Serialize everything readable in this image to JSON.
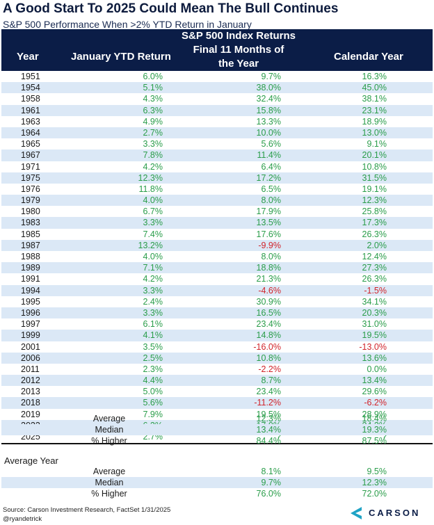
{
  "title": "A Good Start To 2025 Could Mean The Bull Continues",
  "subtitle": "S&P 500 Performance When >2% YTD Return in January",
  "header": {
    "year": "Year",
    "jan": "January YTD Return",
    "group_line1": "S&P 500 Index Returns",
    "group_line2": "Final 11 Months of",
    "group_line3": "the Year",
    "cal": "Calendar Year"
  },
  "rows": [
    {
      "year": "1951",
      "jan": "6.0%",
      "f11": "9.7%",
      "cal": "16.3%"
    },
    {
      "year": "1954",
      "jan": "5.1%",
      "f11": "38.0%",
      "cal": "45.0%"
    },
    {
      "year": "1958",
      "jan": "4.3%",
      "f11": "32.4%",
      "cal": "38.1%"
    },
    {
      "year": "1961",
      "jan": "6.3%",
      "f11": "15.8%",
      "cal": "23.1%"
    },
    {
      "year": "1963",
      "jan": "4.9%",
      "f11": "13.3%",
      "cal": "18.9%"
    },
    {
      "year": "1964",
      "jan": "2.7%",
      "f11": "10.0%",
      "cal": "13.0%"
    },
    {
      "year": "1965",
      "jan": "3.3%",
      "f11": "5.6%",
      "cal": "9.1%"
    },
    {
      "year": "1967",
      "jan": "7.8%",
      "f11": "11.4%",
      "cal": "20.1%"
    },
    {
      "year": "1971",
      "jan": "4.2%",
      "f11": "6.4%",
      "cal": "10.8%"
    },
    {
      "year": "1975",
      "jan": "12.3%",
      "f11": "17.2%",
      "cal": "31.5%"
    },
    {
      "year": "1976",
      "jan": "11.8%",
      "f11": "6.5%",
      "cal": "19.1%"
    },
    {
      "year": "1979",
      "jan": "4.0%",
      "f11": "8.0%",
      "cal": "12.3%"
    },
    {
      "year": "1980",
      "jan": "6.7%",
      "f11": "17.9%",
      "cal": "25.8%"
    },
    {
      "year": "1983",
      "jan": "3.3%",
      "f11": "13.5%",
      "cal": "17.3%"
    },
    {
      "year": "1985",
      "jan": "7.4%",
      "f11": "17.6%",
      "cal": "26.3%"
    },
    {
      "year": "1987",
      "jan": "13.2%",
      "f11": "-9.9%",
      "cal": "2.0%"
    },
    {
      "year": "1988",
      "jan": "4.0%",
      "f11": "8.0%",
      "cal": "12.4%"
    },
    {
      "year": "1989",
      "jan": "7.1%",
      "f11": "18.8%",
      "cal": "27.3%"
    },
    {
      "year": "1991",
      "jan": "4.2%",
      "f11": "21.3%",
      "cal": "26.3%"
    },
    {
      "year": "1994",
      "jan": "3.3%",
      "f11": "-4.6%",
      "cal": "-1.5%"
    },
    {
      "year": "1995",
      "jan": "2.4%",
      "f11": "30.9%",
      "cal": "34.1%"
    },
    {
      "year": "1996",
      "jan": "3.3%",
      "f11": "16.5%",
      "cal": "20.3%"
    },
    {
      "year": "1997",
      "jan": "6.1%",
      "f11": "23.4%",
      "cal": "31.0%"
    },
    {
      "year": "1999",
      "jan": "4.1%",
      "f11": "14.8%",
      "cal": "19.5%"
    },
    {
      "year": "2001",
      "jan": "3.5%",
      "f11": "-16.0%",
      "cal": "-13.0%"
    },
    {
      "year": "2006",
      "jan": "2.5%",
      "f11": "10.8%",
      "cal": "13.6%"
    },
    {
      "year": "2011",
      "jan": "2.3%",
      "f11": "-2.2%",
      "cal": "0.0%"
    },
    {
      "year": "2012",
      "jan": "4.4%",
      "f11": "8.7%",
      "cal": "13.4%"
    },
    {
      "year": "2013",
      "jan": "5.0%",
      "f11": "23.4%",
      "cal": "29.6%"
    },
    {
      "year": "2018",
      "jan": "5.6%",
      "f11": "-11.2%",
      "cal": "-6.2%"
    },
    {
      "year": "2019",
      "jan": "7.9%",
      "f11": "19.5%",
      "cal": "28.9%"
    },
    {
      "year": "2023",
      "jan": "6.2%",
      "f11": "17.0%",
      "cal": "24.2%"
    },
    {
      "year": "2025",
      "jan": "2.7%",
      "f11": "?",
      "cal": "?"
    }
  ],
  "summary": [
    {
      "label": "Average",
      "f11": "12.3%",
      "cal": "18.4%"
    },
    {
      "label": "Median",
      "f11": "13.4%",
      "cal": "19.3%"
    },
    {
      "label": "% Higher",
      "f11": "84.4%",
      "cal": "87.5%"
    }
  ],
  "avg_year_title": "Average Year",
  "avg_year": [
    {
      "label": "Average",
      "f11": "8.1%",
      "cal": "9.5%"
    },
    {
      "label": "Median",
      "f11": "9.7%",
      "cal": "12.3%"
    },
    {
      "label": "% Higher",
      "f11": "76.0%",
      "cal": "72.0%"
    }
  ],
  "source": "Source: Carson Investment Research, FactSet 1/31/2025",
  "handle": "@ryandetrick",
  "logo_text": "CARSON",
  "colors": {
    "header_bg": "#0b1d47",
    "row_alt": "#dbe8f6",
    "positive": "#2a9d4a",
    "negative": "#d1232a"
  }
}
